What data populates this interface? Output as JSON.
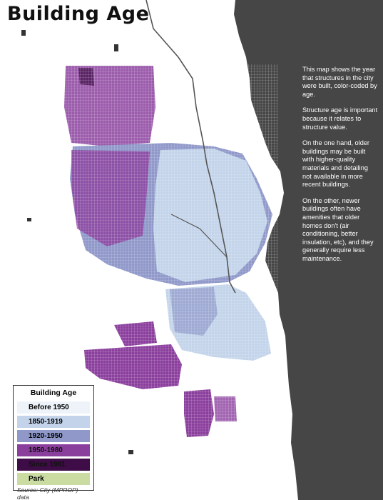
{
  "header": {
    "title": "Building Age"
  },
  "description": {
    "paragraphs": [
      "This map shows the year that structures in the city were built, color-coded by age.",
      "Structure age is important because it relates to structure value.",
      "On the one hand, older buildings may be built with higher-quality materials and detailing not available in more recent buildings.",
      "On the other, newer buildings often have amenities that older homes don't (air conditioning, better insulation, etc), and they generally require less maintenance."
    ]
  },
  "legend": {
    "title": "Building Age",
    "items": [
      {
        "label": "Before 1950",
        "color": "#eef3fa"
      },
      {
        "label": "1850-1919",
        "color": "#c3d4ea"
      },
      {
        "label": "1920-1950",
        "color": "#8f98c9"
      },
      {
        "label": "1950-1980",
        "color": "#8b3f9d"
      },
      {
        "label": "Since 1981",
        "color": "#3e0c46"
      },
      {
        "label": "Park",
        "color": "#cadca2"
      }
    ],
    "source": "Source: City (MPROP) data"
  }
}
